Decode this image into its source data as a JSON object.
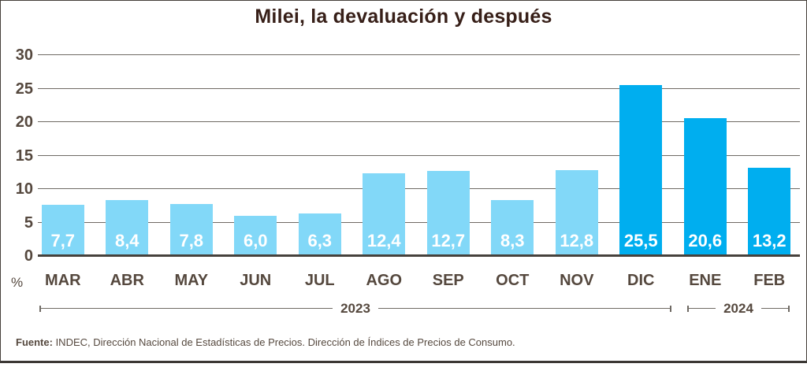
{
  "chart_data": {
    "type": "bar",
    "title": "Milei, la devaluación y después",
    "ylabel": "%",
    "ylim": [
      0,
      30
    ],
    "yticks": [
      0,
      5,
      10,
      15,
      20,
      25,
      30
    ],
    "grid": "horizontal",
    "legend": "none",
    "categories": [
      "MAR",
      "ABR",
      "MAY",
      "JUN",
      "JUL",
      "AGO",
      "SEP",
      "OCT",
      "NOV",
      "DIC",
      "ENE",
      "FEB"
    ],
    "values": [
      7.7,
      8.4,
      7.8,
      6.0,
      6.3,
      12.4,
      12.7,
      8.3,
      12.8,
      25.5,
      20.6,
      13.2
    ],
    "value_labels": [
      "7,7",
      "8,4",
      "7,8",
      "6,0",
      "6,3",
      "12,4",
      "12,7",
      "8,3",
      "12,8",
      "25,5",
      "20,6",
      "13,2"
    ],
    "bar_palette": {
      "light": "#82d8f8",
      "dark": "#00aeef"
    },
    "bar_styles": [
      "light",
      "light",
      "light",
      "light",
      "light",
      "light",
      "light",
      "light",
      "light",
      "dark",
      "dark",
      "dark"
    ],
    "year_groups": [
      {
        "label": "2023",
        "from": "MAR",
        "to": "DIC"
      },
      {
        "label": "2024",
        "from": "ENE",
        "to": "FEB"
      }
    ]
  },
  "footer": {
    "source_label": "Fuente:",
    "source_text": " INDEC, Dirección Nacional de Estadísticas de Precios. Dirección de Índices de Precios de Consumo."
  }
}
